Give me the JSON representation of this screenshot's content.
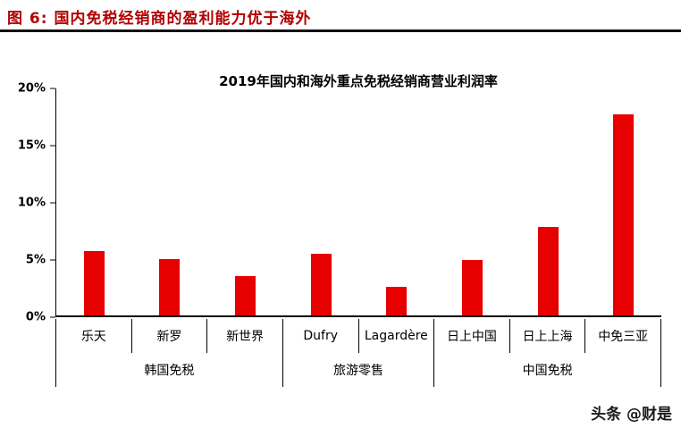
{
  "page": {
    "figure_label": "图 6: 国内免税经销商的盈利能力优于海外",
    "watermark": "头条 @财是"
  },
  "colors": {
    "figure_title": "#b20000",
    "bar": "#e60000",
    "axis": "#000000"
  },
  "chart_data": {
    "type": "bar",
    "title": "2019年国内和海外重点免税经销商营业利润率",
    "categories": [
      "乐天",
      "新罗",
      "新世界",
      "Dufry",
      "Lagardère",
      "日上中国",
      "日上上海",
      "中免三亚"
    ],
    "values": [
      5.7,
      5.0,
      3.5,
      5.4,
      2.5,
      4.9,
      7.8,
      17.7
    ],
    "unit": "%",
    "groups": [
      {
        "label": "韩国免税",
        "span": 3
      },
      {
        "label": "旅游零售",
        "span": 2
      },
      {
        "label": "中国免税",
        "span": 3
      }
    ],
    "xlabel": "",
    "ylabel": "",
    "ylim": [
      0,
      20
    ],
    "yticks": [
      "0%",
      "5%",
      "10%",
      "15%",
      "20%"
    ],
    "grid": false,
    "legend": "none"
  }
}
